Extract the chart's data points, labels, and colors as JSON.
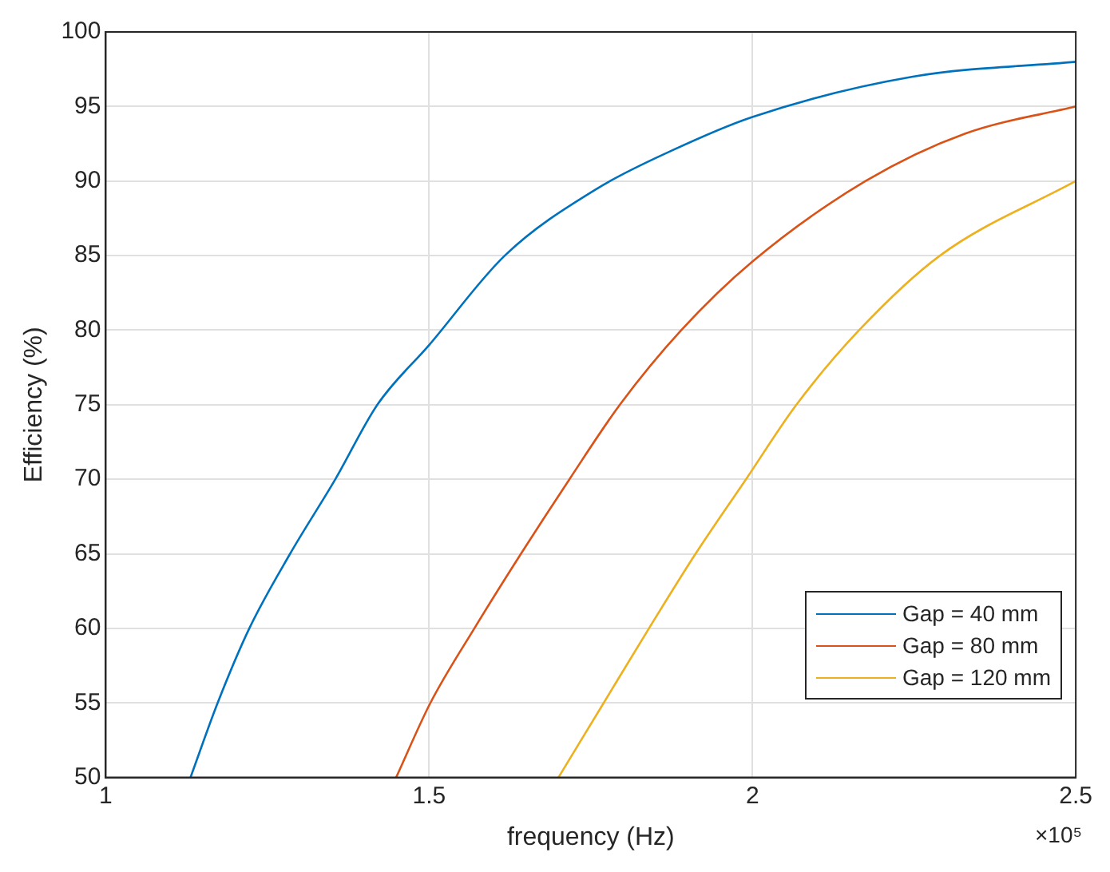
{
  "chart_data": {
    "type": "line",
    "xlabel": "frequency (Hz)",
    "ylabel": "Efficiency (%)",
    "annotations": [
      "×10⁵"
    ],
    "xlim": [
      1,
      2.5
    ],
    "xticks": [
      1,
      1.5,
      2,
      2.5
    ],
    "ylim": [
      50,
      100
    ],
    "yticks": [
      50,
      55,
      60,
      65,
      70,
      75,
      80,
      85,
      90,
      95,
      100
    ],
    "grid": true,
    "legend": "bottom right",
    "line_style": "solid",
    "marker": "none",
    "series": [
      {
        "name": "Gap = 40 mm",
        "color": "#0072bd",
        "x": [
          1.131,
          1.173,
          1.222,
          1.285,
          1.355,
          1.42,
          1.5,
          1.617,
          1.76,
          1.873,
          2,
          2.248,
          2.5
        ],
        "values": [
          50,
          55,
          60,
          65,
          70,
          75,
          79,
          85,
          89.5,
          92,
          94.3,
          97,
          98
        ]
      },
      {
        "name": "Gap = 80 mm",
        "color": "#d95319",
        "x": [
          1.449,
          1.502,
          1.57,
          1.642,
          1.717,
          1.795,
          1.89,
          2,
          2.175,
          2.33,
          2.5
        ],
        "values": [
          50,
          55,
          60,
          65,
          70,
          75,
          80,
          84.6,
          90,
          93.2,
          95
        ]
      },
      {
        "name": "Gap = 120 mm",
        "color": "#edb120",
        "x": [
          1.7,
          1.77,
          1.84,
          1.912,
          1.99,
          2.068,
          2.165,
          2.29,
          2.5
        ],
        "values": [
          50,
          55,
          60,
          65,
          70,
          75,
          80,
          85,
          90
        ]
      }
    ]
  }
}
